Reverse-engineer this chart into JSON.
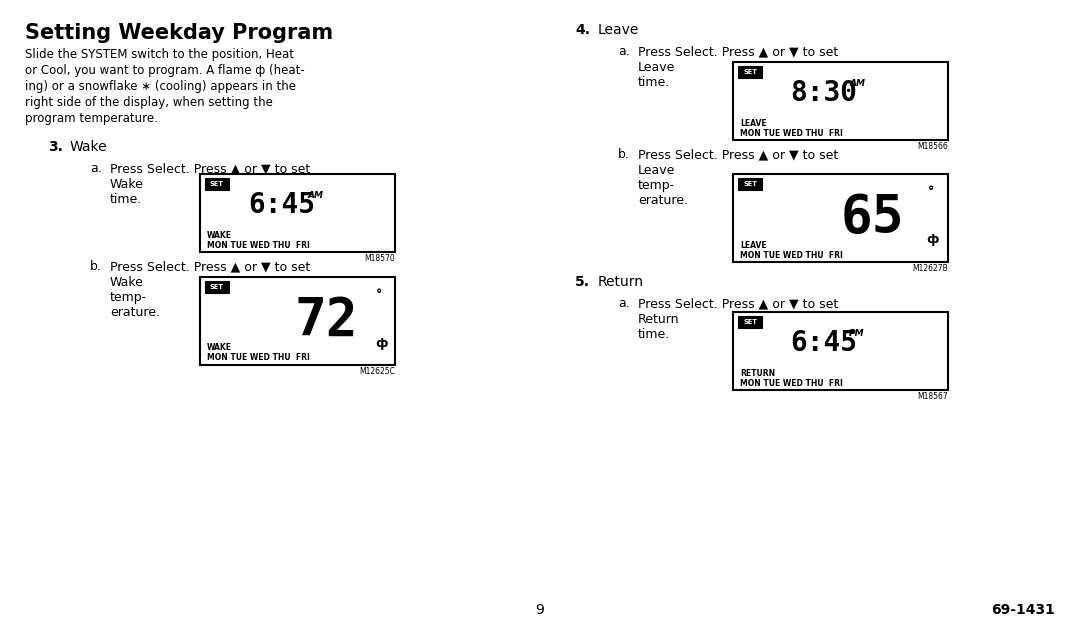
{
  "title": "Setting Weekday Program",
  "bg_color": "#ffffff",
  "text_color": "#000000",
  "page_number": "9",
  "model_number": "69-1431",
  "display1_time": "6:45",
  "display1_ampm": "AM",
  "display1_label1": "WAKE",
  "display1_label2": "MON TUE WED THU  FRI",
  "display1_code": "M18570",
  "display2_temp": "72",
  "display2_label1": "WAKE",
  "display2_label2": "MON TUE WED THU  FRI",
  "display2_code": "M12625C",
  "display3_time": "8:30",
  "display3_ampm": "AM",
  "display3_label1": "LEAVE",
  "display3_label2": "MON TUE WED THU  FRI",
  "display3_code": "M18566",
  "display4_temp": "65",
  "display4_label1": "LEAVE",
  "display4_label2": "MON TUE WED THU  FRI",
  "display4_code": "M12627B",
  "display5_time": "6:45",
  "display5_ampm": "PM",
  "display5_label1": "RETURN",
  "display5_label2": "MON TUE WED THU  FRI",
  "display5_code": "M18567"
}
